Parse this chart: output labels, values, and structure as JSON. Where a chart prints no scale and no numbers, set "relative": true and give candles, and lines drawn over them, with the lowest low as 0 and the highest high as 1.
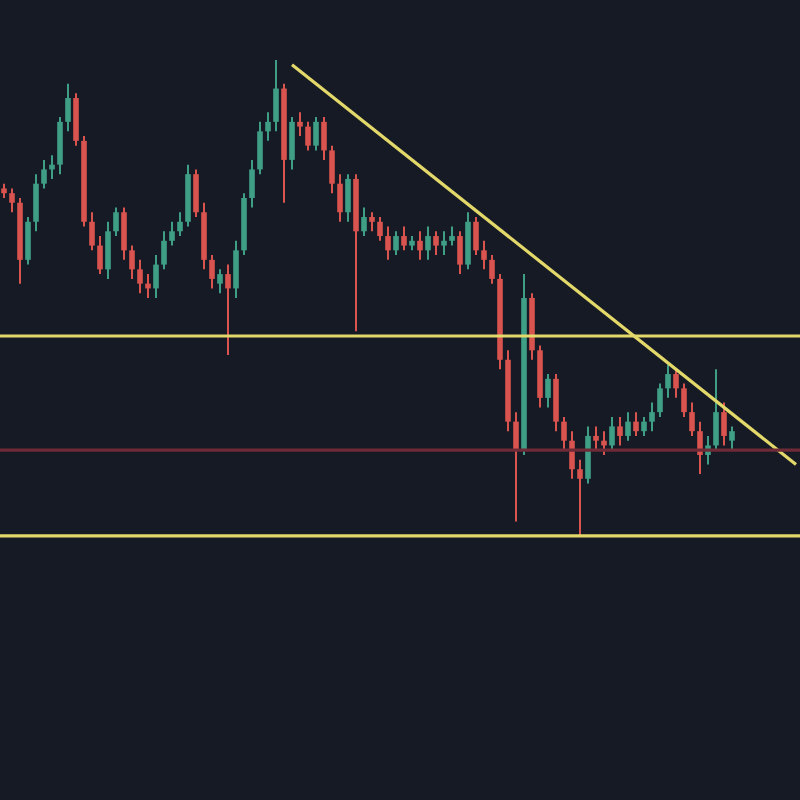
{
  "chart_data": {
    "type": "candlestick",
    "relative": true,
    "tick_labels": false,
    "legend": false,
    "categories": [
      null,
      null,
      null,
      null,
      null,
      null,
      null,
      null,
      null,
      null,
      null,
      null,
      null,
      null,
      null,
      null,
      null,
      null,
      null,
      null,
      null,
      null,
      null,
      null,
      null,
      null,
      null,
      null,
      null,
      null,
      null,
      null,
      null,
      null,
      null,
      null,
      null,
      null,
      null,
      null,
      null,
      null,
      null,
      null,
      null,
      null,
      null,
      null,
      null,
      null,
      null,
      null,
      null,
      null,
      null,
      null,
      null,
      null,
      null,
      null,
      null,
      null,
      null,
      null,
      null,
      null,
      null,
      null,
      null,
      null,
      null,
      null,
      null,
      null,
      null,
      null,
      null,
      null,
      null,
      null,
      null,
      null,
      null,
      null,
      null,
      null,
      null,
      null,
      null,
      null,
      null,
      null,
      null,
      null,
      null,
      null,
      null,
      null,
      null,
      null
    ],
    "ohlc": [
      [
        0.73,
        0.74,
        0.71,
        0.72
      ],
      [
        0.72,
        0.73,
        0.68,
        0.7
      ],
      [
        0.7,
        0.71,
        0.53,
        0.58
      ],
      [
        0.58,
        0.67,
        0.57,
        0.66
      ],
      [
        0.66,
        0.76,
        0.64,
        0.74
      ],
      [
        0.74,
        0.79,
        0.73,
        0.77
      ],
      [
        0.77,
        0.8,
        0.75,
        0.78
      ],
      [
        0.78,
        0.88,
        0.76,
        0.87
      ],
      [
        0.87,
        0.95,
        0.85,
        0.92
      ],
      [
        0.92,
        0.93,
        0.82,
        0.83
      ],
      [
        0.83,
        0.84,
        0.65,
        0.66
      ],
      [
        0.66,
        0.68,
        0.6,
        0.61
      ],
      [
        0.61,
        0.63,
        0.55,
        0.56
      ],
      [
        0.56,
        0.66,
        0.54,
        0.64
      ],
      [
        0.64,
        0.69,
        0.63,
        0.68
      ],
      [
        0.68,
        0.69,
        0.58,
        0.6
      ],
      [
        0.6,
        0.61,
        0.54,
        0.56
      ],
      [
        0.56,
        0.58,
        0.51,
        0.53
      ],
      [
        0.53,
        0.55,
        0.5,
        0.52
      ],
      [
        0.52,
        0.59,
        0.5,
        0.57
      ],
      [
        0.57,
        0.64,
        0.56,
        0.62
      ],
      [
        0.62,
        0.66,
        0.61,
        0.64
      ],
      [
        0.64,
        0.68,
        0.63,
        0.66
      ],
      [
        0.66,
        0.78,
        0.65,
        0.76
      ],
      [
        0.76,
        0.77,
        0.67,
        0.68
      ],
      [
        0.68,
        0.7,
        0.56,
        0.58
      ],
      [
        0.58,
        0.59,
        0.52,
        0.54
      ],
      [
        0.53,
        0.56,
        0.51,
        0.55
      ],
      [
        0.55,
        0.57,
        0.38,
        0.52
      ],
      [
        0.52,
        0.62,
        0.5,
        0.6
      ],
      [
        0.6,
        0.72,
        0.59,
        0.71
      ],
      [
        0.71,
        0.79,
        0.69,
        0.77
      ],
      [
        0.77,
        0.87,
        0.76,
        0.85
      ],
      [
        0.85,
        0.89,
        0.83,
        0.87
      ],
      [
        0.87,
        1,
        0.85,
        0.94
      ],
      [
        0.94,
        0.95,
        0.7,
        0.79
      ],
      [
        0.79,
        0.88,
        0.77,
        0.87
      ],
      [
        0.87,
        0.89,
        0.84,
        0.86
      ],
      [
        0.86,
        0.87,
        0.81,
        0.82
      ],
      [
        0.82,
        0.88,
        0.81,
        0.87
      ],
      [
        0.87,
        0.88,
        0.79,
        0.81
      ],
      [
        0.81,
        0.82,
        0.72,
        0.74
      ],
      [
        0.74,
        0.76,
        0.66,
        0.68
      ],
      [
        0.68,
        0.76,
        0.66,
        0.75
      ],
      [
        0.75,
        0.76,
        0.43,
        0.64
      ],
      [
        0.64,
        0.69,
        0.63,
        0.67
      ],
      [
        0.67,
        0.68,
        0.64,
        0.66
      ],
      [
        0.66,
        0.67,
        0.62,
        0.63
      ],
      [
        0.63,
        0.65,
        0.58,
        0.6
      ],
      [
        0.6,
        0.64,
        0.59,
        0.63
      ],
      [
        0.63,
        0.65,
        0.6,
        0.61
      ],
      [
        0.61,
        0.63,
        0.6,
        0.62
      ],
      [
        0.62,
        0.64,
        0.58,
        0.6
      ],
      [
        0.6,
        0.65,
        0.58,
        0.63
      ],
      [
        0.63,
        0.64,
        0.59,
        0.61
      ],
      [
        0.61,
        0.64,
        0.59,
        0.62
      ],
      [
        0.62,
        0.65,
        0.61,
        0.63
      ],
      [
        0.63,
        0.64,
        0.55,
        0.57
      ],
      [
        0.57,
        0.68,
        0.56,
        0.66
      ],
      [
        0.66,
        0.67,
        0.59,
        0.6
      ],
      [
        0.6,
        0.62,
        0.56,
        0.58
      ],
      [
        0.58,
        0.59,
        0.53,
        0.54
      ],
      [
        0.54,
        0.55,
        0.35,
        0.37
      ],
      [
        0.37,
        0.39,
        0.22,
        0.24
      ],
      [
        0.24,
        0.26,
        0.03,
        0.18
      ],
      [
        0.18,
        0.55,
        0.17,
        0.5
      ],
      [
        0.5,
        0.51,
        0.37,
        0.39
      ],
      [
        0.39,
        0.4,
        0.27,
        0.29
      ],
      [
        0.29,
        0.34,
        0.27,
        0.33
      ],
      [
        0.33,
        0.34,
        0.22,
        0.24
      ],
      [
        0.24,
        0.25,
        0.18,
        0.2
      ],
      [
        0.2,
        0.22,
        0.12,
        0.14
      ],
      [
        0.14,
        0.16,
        0,
        0.12
      ],
      [
        0.12,
        0.23,
        0.11,
        0.21
      ],
      [
        0.21,
        0.23,
        0.18,
        0.2
      ],
      [
        0.2,
        0.22,
        0.17,
        0.19
      ],
      [
        0.19,
        0.25,
        0.18,
        0.23
      ],
      [
        0.23,
        0.25,
        0.19,
        0.21
      ],
      [
        0.21,
        0.26,
        0.2,
        0.24
      ],
      [
        0.24,
        0.26,
        0.21,
        0.22
      ],
      [
        0.22,
        0.25,
        0.21,
        0.24
      ],
      [
        0.24,
        0.28,
        0.22,
        0.26
      ],
      [
        0.26,
        0.32,
        0.25,
        0.31
      ],
      [
        0.31,
        0.36,
        0.29,
        0.34
      ],
      [
        0.34,
        0.35,
        0.29,
        0.31
      ],
      [
        0.31,
        0.32,
        0.25,
        0.26
      ],
      [
        0.26,
        0.28,
        0.21,
        0.22
      ],
      [
        0.22,
        0.24,
        0.13,
        0.17
      ],
      [
        0.17,
        0.21,
        0.15,
        0.19
      ],
      [
        0.19,
        0.35,
        0.18,
        0.26
      ],
      [
        0.26,
        0.28,
        0.19,
        0.21
      ],
      [
        0.2,
        0.23,
        0.18,
        0.22
      ],
      null,
      null,
      null,
      null,
      null,
      null,
      null,
      null
    ],
    "series": [
      {
        "type": "line",
        "color": "#e3d86a",
        "values": [
          null,
          null,
          null,
          null,
          null,
          null,
          null,
          null,
          null,
          null,
          null,
          null,
          null,
          null,
          null,
          null,
          null,
          null,
          null,
          null,
          null,
          null,
          null,
          null,
          null,
          null,
          null,
          null,
          null,
          null,
          null,
          null,
          null,
          null,
          null,
          null,
          0.99,
          null,
          null,
          null,
          null,
          null,
          null,
          null,
          null,
          null,
          null,
          null,
          null,
          null,
          null,
          null,
          null,
          null,
          null,
          null,
          null,
          null,
          null,
          null,
          null,
          null,
          null,
          null,
          null,
          null,
          null,
          null,
          null,
          null,
          null,
          null,
          null,
          null,
          null,
          null,
          null,
          null,
          null,
          null,
          null,
          null,
          null,
          null,
          null,
          null,
          null,
          null,
          null,
          null,
          null,
          null,
          null,
          null,
          null,
          null,
          null,
          null,
          null,
          0.15
        ]
      }
    ],
    "ref_lines": [
      {
        "axis": "y",
        "value": 0.42,
        "color": "#e3d86a"
      },
      {
        "axis": "y",
        "value": 0,
        "color": "#e3d86a"
      },
      {
        "axis": "y",
        "value": 0.18,
        "color": "#6e2a36"
      }
    ]
  }
}
